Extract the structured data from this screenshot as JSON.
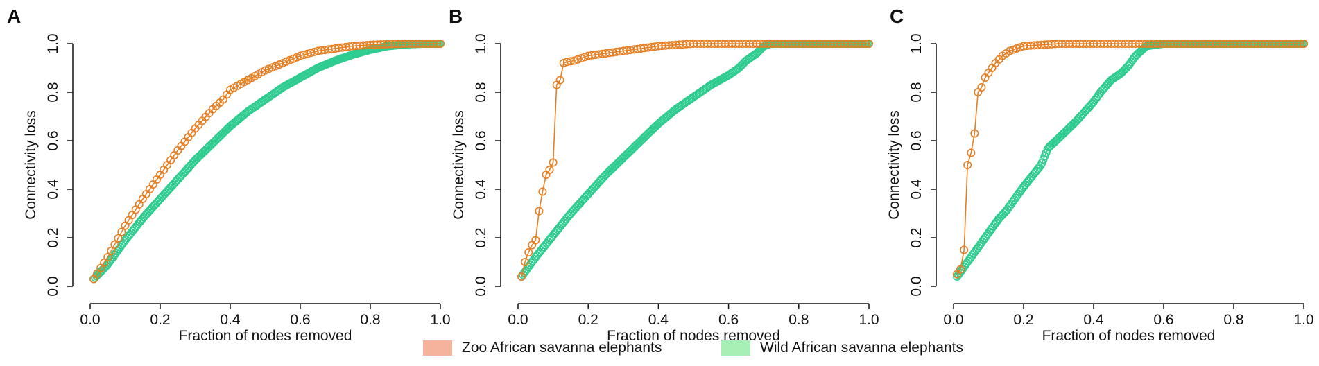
{
  "chart_data": [
    {
      "type": "line",
      "panel": "A",
      "xlabel": "Fraction of nodes removed",
      "ylabel": "Connectivity loss",
      "xlim": [
        0,
        1
      ],
      "ylim": [
        0,
        1
      ],
      "xticks": [
        "0.0",
        "0.2",
        "0.4",
        "0.6",
        "0.8",
        "1.0"
      ],
      "yticks": [
        "0.0",
        "0.2",
        "0.4",
        "0.6",
        "0.8",
        "1.0"
      ],
      "series": [
        {
          "color": "#e67e22",
          "n": 100,
          "x": [
            0.01,
            0.05,
            0.1,
            0.15,
            0.2,
            0.25,
            0.3,
            0.35,
            0.38,
            0.4,
            0.45,
            0.5,
            0.55,
            0.6,
            0.65,
            0.7,
            0.75,
            0.8,
            0.85,
            0.9,
            0.95,
            1.0
          ],
          "y": [
            0.03,
            0.12,
            0.25,
            0.36,
            0.46,
            0.56,
            0.65,
            0.73,
            0.77,
            0.81,
            0.85,
            0.89,
            0.92,
            0.95,
            0.97,
            0.98,
            0.99,
            0.995,
            0.998,
            1.0,
            1.0,
            1.0
          ]
        },
        {
          "color": "#2ecc8f",
          "n": 250,
          "x": [
            0.01,
            0.05,
            0.1,
            0.15,
            0.2,
            0.25,
            0.3,
            0.35,
            0.4,
            0.45,
            0.5,
            0.55,
            0.6,
            0.65,
            0.7,
            0.75,
            0.8,
            0.85,
            0.9,
            0.95,
            1.0
          ],
          "y": [
            0.03,
            0.09,
            0.19,
            0.28,
            0.36,
            0.44,
            0.52,
            0.59,
            0.66,
            0.72,
            0.77,
            0.82,
            0.86,
            0.9,
            0.93,
            0.955,
            0.975,
            0.99,
            0.997,
            1.0,
            1.0
          ]
        }
      ]
    },
    {
      "type": "line",
      "panel": "B",
      "xlabel": "Fraction of nodes removed",
      "ylabel": "Connectivity loss",
      "xlim": [
        0,
        1
      ],
      "ylim": [
        0,
        1
      ],
      "xticks": [
        "0.0",
        "0.2",
        "0.4",
        "0.6",
        "0.8",
        "1.0"
      ],
      "yticks": [
        "0.0",
        "0.2",
        "0.4",
        "0.6",
        "0.8",
        "1.0"
      ],
      "series": [
        {
          "color": "#e67e22",
          "n": 100,
          "x": [
            0.01,
            0.02,
            0.03,
            0.04,
            0.05,
            0.06,
            0.07,
            0.08,
            0.09,
            0.1,
            0.11,
            0.12,
            0.13,
            0.14,
            0.16,
            0.2,
            0.25,
            0.3,
            0.35,
            0.4,
            0.5,
            0.6,
            0.7,
            0.8,
            0.9,
            1.0
          ],
          "y": [
            0.04,
            0.1,
            0.14,
            0.17,
            0.19,
            0.31,
            0.39,
            0.46,
            0.48,
            0.51,
            0.83,
            0.85,
            0.92,
            0.925,
            0.93,
            0.95,
            0.96,
            0.97,
            0.98,
            0.99,
            1.0,
            1.0,
            1.0,
            1.0,
            1.0,
            1.0
          ]
        },
        {
          "color": "#2ecc8f",
          "n": 250,
          "x": [
            0.01,
            0.05,
            0.1,
            0.15,
            0.2,
            0.25,
            0.3,
            0.35,
            0.4,
            0.45,
            0.5,
            0.55,
            0.6,
            0.63,
            0.65,
            0.68,
            0.7,
            0.72,
            0.75,
            0.8,
            0.9,
            1.0
          ],
          "y": [
            0.04,
            0.12,
            0.21,
            0.3,
            0.38,
            0.46,
            0.53,
            0.6,
            0.67,
            0.73,
            0.78,
            0.83,
            0.87,
            0.9,
            0.93,
            0.96,
            0.99,
            1.0,
            1.0,
            1.0,
            1.0,
            1.0
          ]
        }
      ]
    },
    {
      "type": "line",
      "panel": "C",
      "xlabel": "Fraction of nodes removed",
      "ylabel": "Connectivity loss",
      "xlim": [
        0,
        1
      ],
      "ylim": [
        0,
        1
      ],
      "xticks": [
        "0.0",
        "0.2",
        "0.4",
        "0.6",
        "0.8",
        "1.0"
      ],
      "yticks": [
        "0.0",
        "0.2",
        "0.4",
        "0.6",
        "0.8",
        "1.0"
      ],
      "series": [
        {
          "color": "#e67e22",
          "n": 100,
          "x": [
            0.01,
            0.02,
            0.03,
            0.04,
            0.05,
            0.06,
            0.07,
            0.08,
            0.09,
            0.1,
            0.12,
            0.14,
            0.16,
            0.18,
            0.2,
            0.25,
            0.3,
            0.4,
            0.5,
            0.6,
            0.7,
            0.8,
            0.9,
            1.0
          ],
          "y": [
            0.05,
            0.07,
            0.15,
            0.5,
            0.55,
            0.63,
            0.8,
            0.82,
            0.86,
            0.88,
            0.92,
            0.95,
            0.97,
            0.98,
            0.99,
            0.995,
            1.0,
            1.0,
            1.0,
            1.0,
            1.0,
            1.0,
            1.0,
            1.0
          ]
        },
        {
          "color": "#2ecc8f",
          "n": 250,
          "x": [
            0.01,
            0.05,
            0.1,
            0.13,
            0.15,
            0.2,
            0.25,
            0.27,
            0.3,
            0.35,
            0.4,
            0.42,
            0.45,
            0.48,
            0.5,
            0.52,
            0.55,
            0.6,
            0.7,
            0.8,
            0.9,
            1.0
          ],
          "y": [
            0.04,
            0.12,
            0.22,
            0.28,
            0.31,
            0.41,
            0.5,
            0.57,
            0.61,
            0.68,
            0.76,
            0.8,
            0.85,
            0.88,
            0.91,
            0.95,
            0.99,
            1.0,
            1.0,
            1.0,
            1.0,
            1.0
          ]
        }
      ]
    }
  ],
  "legend": {
    "zoo_label": "Zoo African savanna elephants",
    "wild_label": "Wild African savanna elephants",
    "zoo_color": "#f4b39a",
    "wild_color": "#a6f0b6"
  }
}
